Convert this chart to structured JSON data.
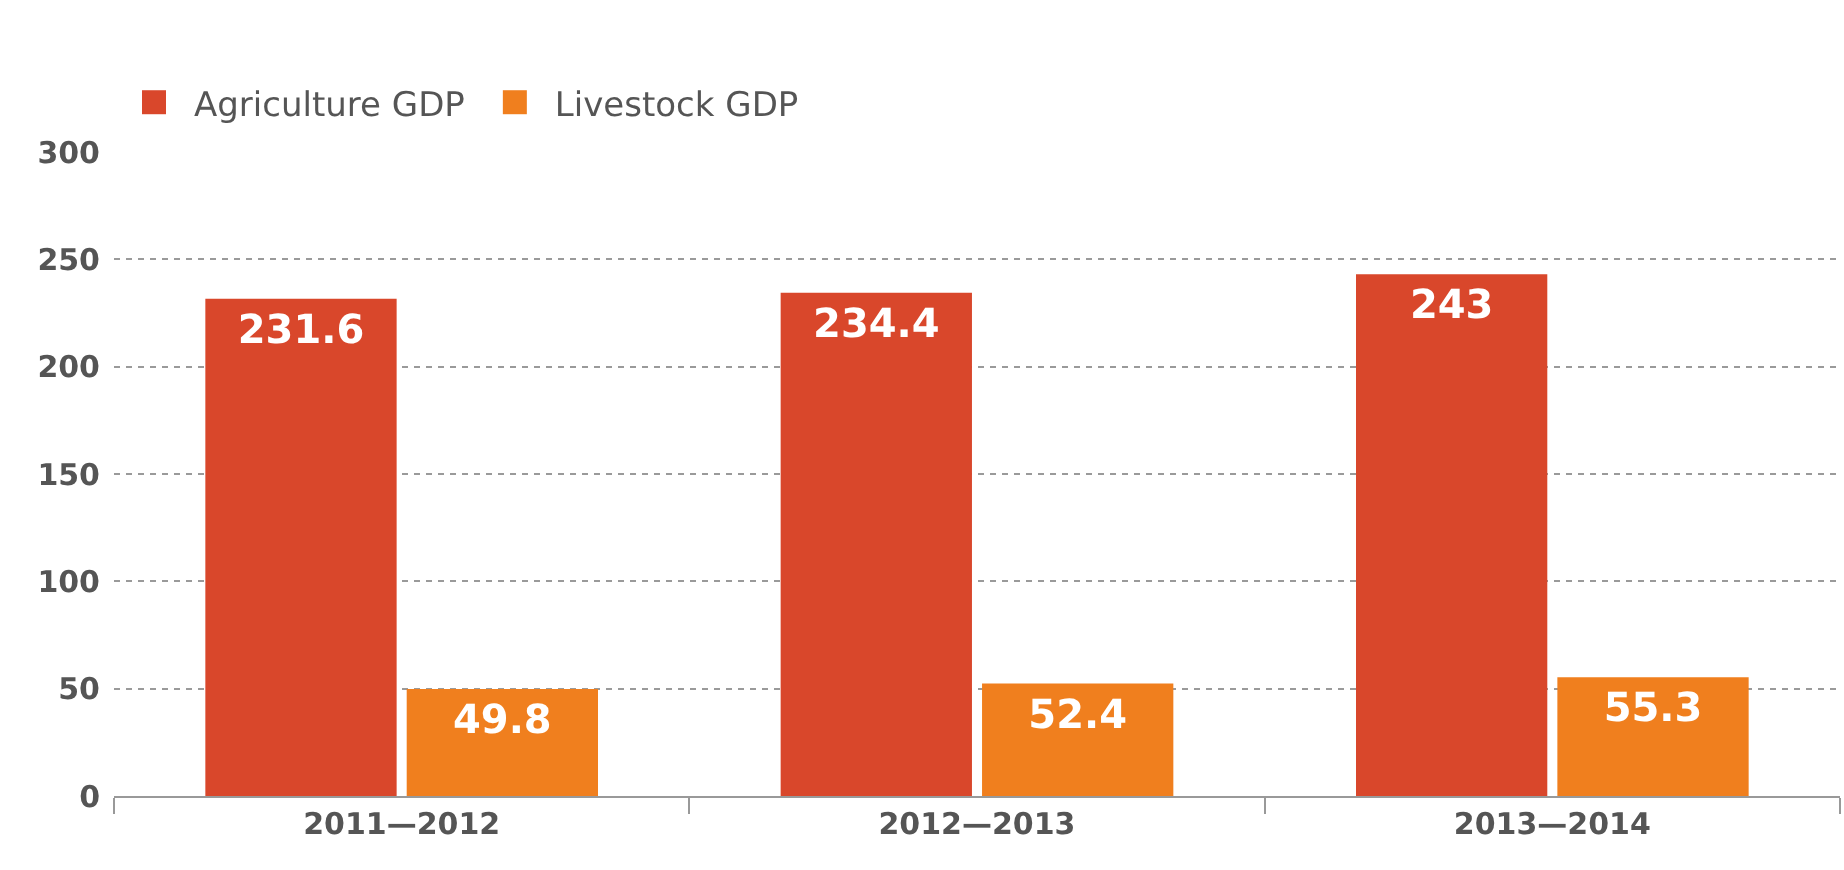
{
  "chart_data": {
    "type": "bar",
    "categories": [
      "2011—2012",
      "2012—2013",
      "2013—2014"
    ],
    "series": [
      {
        "name": "Agriculture GDP",
        "color": "#d9472b",
        "values": [
          231.6,
          234.4,
          243
        ]
      },
      {
        "name": "Livestock GDP",
        "color": "#f07f1e",
        "values": [
          49.8,
          52.4,
          55.3
        ]
      }
    ],
    "ylim": [
      0,
      300
    ],
    "yticks": [
      0,
      50,
      100,
      150,
      200,
      250,
      300
    ],
    "grid": "y",
    "legend": "top left",
    "data_labels": true
  }
}
